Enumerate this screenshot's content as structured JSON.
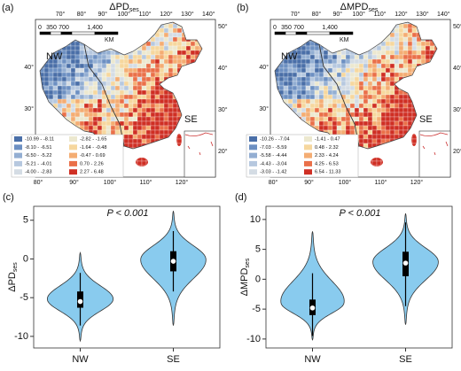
{
  "chart_data": [
    {
      "type": "map",
      "panel": "(a)",
      "title": "ΔPD",
      "title_sub": "ses",
      "region_labels": [
        "NW",
        "SE"
      ],
      "scale_labels": [
        "0",
        "350",
        "700",
        "1,400"
      ],
      "scale_unit": "KM",
      "lon_top": [
        "70°",
        "80°",
        "90°",
        "100°",
        "110°",
        "120°",
        "130°",
        "140°"
      ],
      "lon_bottom": [
        "80°",
        "90°",
        "100°",
        "110°",
        "120°"
      ],
      "lat_right": [
        "50°",
        "40°",
        "30°",
        "20°"
      ],
      "lat_left": [
        "40°",
        "30°",
        "20°"
      ],
      "legend": [
        {
          "label": "-10.99 - -8.11",
          "color": "#4a6fa8"
        },
        {
          "label": "-8.10 - -6.51",
          "color": "#6d90c2"
        },
        {
          "label": "-6.50 - -5.22",
          "color": "#93aed2"
        },
        {
          "label": "-5.21 - -4.01",
          "color": "#b6c8df"
        },
        {
          "label": "-4.00 - -2.83",
          "color": "#d4dce4"
        },
        {
          "label": "-2.82 - -1.65",
          "color": "#ece8cf"
        },
        {
          "label": "-1.64 - -0.48",
          "color": "#f6d79e"
        },
        {
          "label": "-0.47 - 0.69",
          "color": "#f4ad73"
        },
        {
          "label": "0.70 - 2.26",
          "color": "#ea7049"
        },
        {
          "label": "2.27 - 6.48",
          "color": "#cf2f24"
        }
      ]
    },
    {
      "type": "map",
      "panel": "(b)",
      "title": "ΔMPD",
      "title_sub": "ses",
      "region_labels": [
        "NW",
        "SE"
      ],
      "scale_labels": [
        "0",
        "350",
        "700",
        "1,400"
      ],
      "scale_unit": "KM",
      "lon_top": [
        "70°",
        "80°",
        "90°",
        "100°",
        "110°",
        "120°",
        "130°",
        "140°"
      ],
      "lon_bottom": [
        "80°",
        "90°",
        "100°",
        "110°",
        "120°"
      ],
      "lat_right": [
        "50°",
        "40°",
        "30°",
        "20°"
      ],
      "lat_left": [
        "40°",
        "30°",
        "20°"
      ],
      "legend": [
        {
          "label": "-10.26 - -7.04",
          "color": "#4a6fa8"
        },
        {
          "label": "-7.03 - -5.59",
          "color": "#6d90c2"
        },
        {
          "label": "-5.58 - -4.44",
          "color": "#93aed2"
        },
        {
          "label": "-4.43 - -3.04",
          "color": "#b6c8df"
        },
        {
          "label": "-3.03 - -1.42",
          "color": "#d4dce4"
        },
        {
          "label": "-1.41 - 0.47",
          "color": "#ece8cf"
        },
        {
          "label": "0.48 - 2.32",
          "color": "#f6d79e"
        },
        {
          "label": "2.33 - 4.24",
          "color": "#f4ad73"
        },
        {
          "label": "4.25 - 6.53",
          "color": "#ea7049"
        },
        {
          "label": "6.54 - 11.33",
          "color": "#cf2f24"
        }
      ]
    },
    {
      "type": "violin",
      "panel": "(c)",
      "y_label": "ΔPD",
      "y_label_sub": "ses",
      "annotation": "P < 0.001",
      "categories": [
        "NW",
        "SE"
      ],
      "color": "#89cbee",
      "violins": [
        {
          "min": -10.6,
          "max": 0.8,
          "mode": -5.2,
          "whisker_low": -8.6,
          "q1": -6.3,
          "median": -5.5,
          "q3": -4.2,
          "whisker_high": -1.8
        },
        {
          "min": -8.6,
          "max": 6.2,
          "mode": 0,
          "whisker_low": -4.2,
          "q1": -1.6,
          "median": -0.3,
          "q3": 1.0,
          "whisker_high": 3.6
        }
      ],
      "ylim": [
        -11.5,
        6.8
      ],
      "yticks": [
        -10,
        -5,
        0,
        5
      ]
    },
    {
      "type": "violin",
      "panel": "(d)",
      "y_label": "ΔMPD",
      "y_label_sub": "ses",
      "annotation": "P < 0.001",
      "categories": [
        "NW",
        "SE"
      ],
      "color": "#89cbee",
      "violins": [
        {
          "min": -10.2,
          "max": 8.0,
          "mode": -4.0,
          "whisker_low": -9.5,
          "q1": -6.0,
          "median": -4.8,
          "q3": -3.4,
          "whisker_high": 1.0
        },
        {
          "min": -7.6,
          "max": 11.0,
          "mode": 3.0,
          "whisker_low": -4.5,
          "q1": 0.5,
          "median": 2.7,
          "q3": 4.6,
          "whisker_high": 9.5
        }
      ],
      "ylim": [
        -11.5,
        12.2
      ],
      "yticks": [
        -10,
        -5,
        0,
        5,
        10
      ]
    }
  ]
}
